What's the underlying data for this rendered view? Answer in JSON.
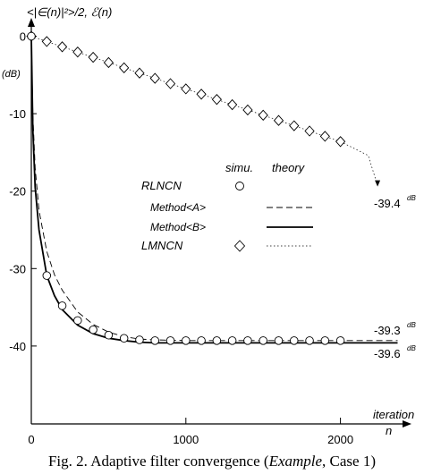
{
  "chart_data": {
    "type": "line",
    "ylabel": "<|∈(n)|²>/2, ℰ(n)",
    "yunit": "(dB)",
    "xlabel_line1": "iteration",
    "xlabel_line2": "n",
    "xlim": [
      0,
      2400
    ],
    "ylim": [
      -45,
      2
    ],
    "xticks": [
      0,
      1000,
      2000
    ],
    "yticks": [
      0,
      -10,
      -20,
      -30,
      -40
    ],
    "legend": {
      "header_sim": "simu.",
      "header_theory": "theory",
      "placement": "center",
      "entries": [
        "RLNCN",
        "Method<A>",
        "Method<B>",
        "LMNCN"
      ]
    },
    "series": [
      {
        "name": "RLNCN",
        "style": "marker-circle",
        "x": [
          0,
          100,
          200,
          300,
          400,
          500,
          600,
          700,
          800,
          900,
          1000,
          1100,
          1200,
          1300,
          1400,
          1500,
          1600,
          1700,
          1800,
          1900,
          2000
        ],
        "y": [
          0,
          -30.9,
          -34.8,
          -36.7,
          -37.9,
          -38.6,
          -39.0,
          -39.2,
          -39.3,
          -39.3,
          -39.3,
          -39.3,
          -39.3,
          -39.3,
          -39.3,
          -39.3,
          -39.3,
          -39.3,
          -39.3,
          -39.3,
          -39.3
        ]
      },
      {
        "name": "Method<A>",
        "style": "dashed",
        "x": [
          0,
          10,
          25,
          50,
          100,
          150,
          200,
          300,
          400,
          500,
          600,
          700,
          800,
          1000,
          1500,
          2000,
          2370
        ],
        "y": [
          0,
          -10,
          -17,
          -22.5,
          -27.8,
          -30.8,
          -32.8,
          -35.6,
          -37.2,
          -38.2,
          -38.8,
          -39.1,
          -39.2,
          -39.3,
          -39.3,
          -39.3,
          -39.3
        ]
      },
      {
        "name": "Method<B>",
        "style": "solid",
        "x": [
          0,
          10,
          25,
          50,
          100,
          150,
          200,
          300,
          400,
          500,
          600,
          700,
          800,
          1000,
          1500,
          2000,
          2370
        ],
        "y": [
          0,
          -12,
          -19.5,
          -25,
          -30.9,
          -33.5,
          -35.3,
          -37.3,
          -38.4,
          -39.0,
          -39.3,
          -39.5,
          -39.6,
          -39.6,
          -39.6,
          -39.6,
          -39.6
        ]
      },
      {
        "name": "LMNCN",
        "style": "marker-diamond-dotted",
        "x": [
          0,
          100,
          200,
          300,
          400,
          500,
          600,
          700,
          800,
          900,
          1000,
          1100,
          1200,
          1300,
          1400,
          1500,
          1600,
          1700,
          1800,
          1900,
          2000
        ],
        "y": [
          0,
          -0.68,
          -1.36,
          -2.04,
          -2.72,
          -3.4,
          -4.08,
          -4.76,
          -5.44,
          -6.12,
          -6.8,
          -7.48,
          -8.16,
          -8.84,
          -9.52,
          -10.2,
          -10.88,
          -11.56,
          -12.24,
          -12.92,
          -13.6
        ]
      }
    ],
    "lmncn_tail": {
      "x": [
        2000,
        2180,
        2240
      ],
      "y": [
        -13.6,
        -15.4,
        -19.3
      ]
    },
    "annotations": [
      {
        "label": "-39.4",
        "sup": "dB"
      },
      {
        "label": "-39.3",
        "sup": "dB"
      },
      {
        "label": "-39.6",
        "sup": "dB"
      }
    ]
  },
  "caption": {
    "text": "Fig. 2.  Adaptive filter convergence (",
    "italic": "Example",
    "tail": ", Case 1)"
  }
}
